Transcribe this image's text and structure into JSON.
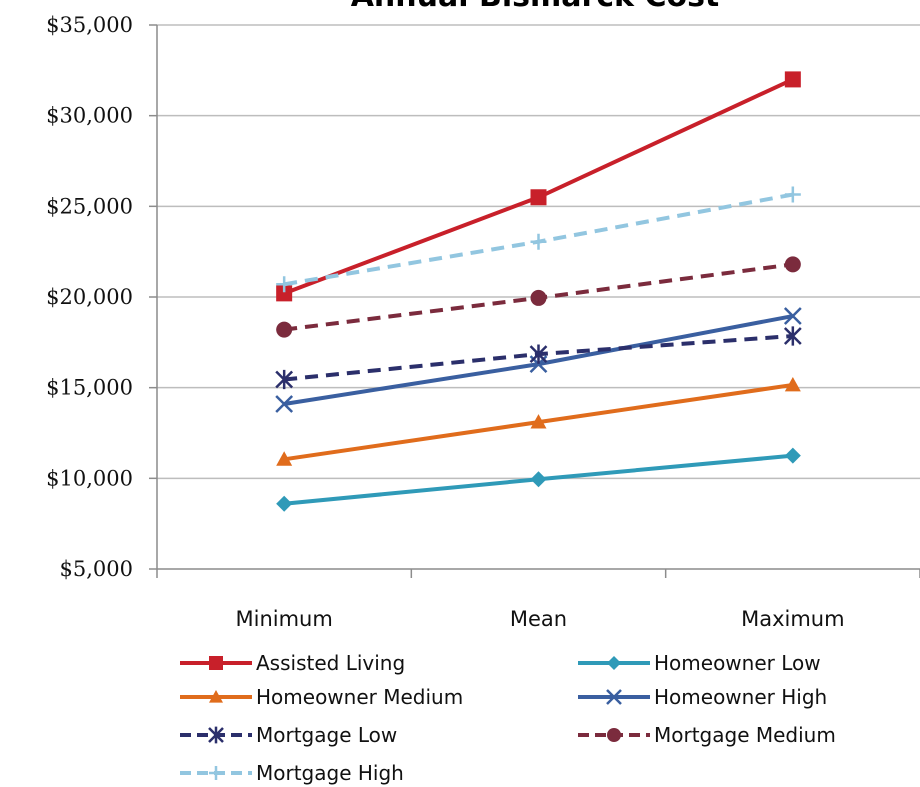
{
  "chart_data": {
    "type": "line",
    "title": "Annual Bismarck Cost",
    "xlabel": "",
    "ylabel": "",
    "categories": [
      "Minimum",
      "Mean",
      "Maximum"
    ],
    "ylim": [
      5000,
      35000
    ],
    "yticks": [
      5000,
      10000,
      15000,
      20000,
      25000,
      30000,
      35000
    ],
    "ytick_labels": [
      "$5,000",
      "$10,000",
      "$15,000",
      "$20,000",
      "$25,000",
      "$30,000",
      "$35,000"
    ],
    "grid": "horizontal",
    "legend_position": "bottom",
    "series": [
      {
        "name": "Assisted Living",
        "values": [
          20200,
          25500,
          32000
        ],
        "color": "#c8202a",
        "dash": "solid",
        "marker": "square"
      },
      {
        "name": "Homeowner Low",
        "values": [
          8600,
          9950,
          11250
        ],
        "color": "#2f9ab8",
        "dash": "solid",
        "marker": "diamond"
      },
      {
        "name": "Homeowner Medium",
        "values": [
          11050,
          13100,
          15150
        ],
        "color": "#e06c1c",
        "dash": "solid",
        "marker": "triangle"
      },
      {
        "name": "Homeowner High",
        "values": [
          14100,
          16300,
          18950
        ],
        "color": "#3a5fa0",
        "dash": "solid",
        "marker": "x"
      },
      {
        "name": "Mortgage Low",
        "values": [
          15450,
          16850,
          17850
        ],
        "color": "#2b2f6b",
        "dash": "dashed",
        "marker": "asterisk"
      },
      {
        "name": "Mortgage Medium",
        "values": [
          18200,
          19950,
          21800
        ],
        "color": "#7b2b3d",
        "dash": "dashed",
        "marker": "circle"
      },
      {
        "name": "Mortgage High",
        "values": [
          20700,
          23050,
          25650
        ],
        "color": "#92c6e0",
        "dash": "dashed",
        "marker": "plus"
      }
    ]
  }
}
